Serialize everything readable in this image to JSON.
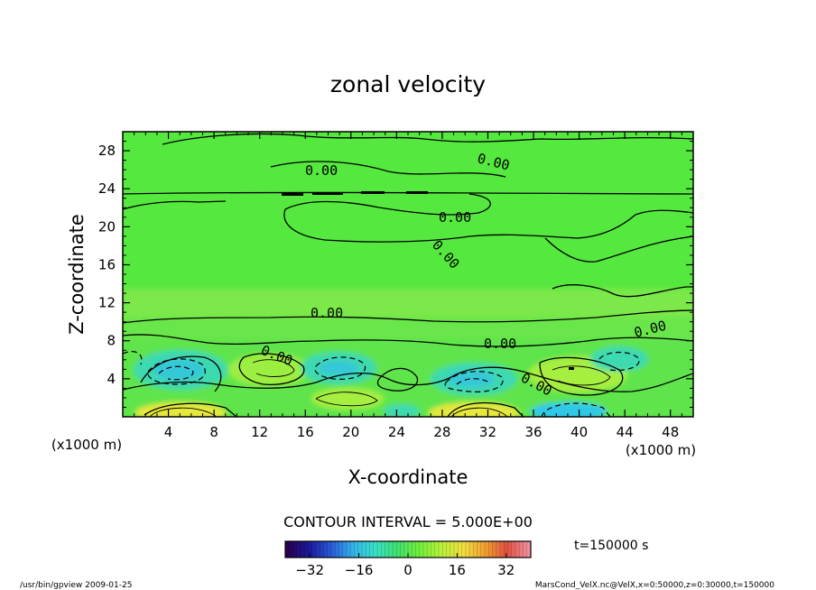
{
  "chart_data": {
    "type": "heatmap",
    "title": "zonal velocity",
    "xlabel": "X-coordinate",
    "ylabel": "Z-coordinate",
    "x_unit_label": "(x1000 m)",
    "y_unit_label": "(x1000 m)",
    "xlim": [
      0,
      50
    ],
    "ylim": [
      0,
      30
    ],
    "x_ticks": [
      4,
      8,
      12,
      16,
      20,
      24,
      28,
      32,
      36,
      40,
      44,
      48
    ],
    "y_ticks": [
      4,
      8,
      12,
      16,
      20,
      24,
      28
    ],
    "contour_interval_label": "CONTOUR INTERVAL = 5.000E+00",
    "contour_labels": [
      "0.00",
      "0.00",
      "0.00",
      "0.00",
      "0.00",
      "0.00",
      "0.00",
      "0.00",
      "0.00"
    ],
    "colorbar": {
      "min": -40,
      "max": 40,
      "ticks": [
        -32,
        -16,
        0,
        16,
        32
      ],
      "colors": [
        "#2a0050",
        "#1a1a9a",
        "#2a5ad8",
        "#33b4e8",
        "#39e0c8",
        "#40e070",
        "#6ef03a",
        "#b8f03a",
        "#f0e040",
        "#f0a030",
        "#e05040",
        "#f090a0"
      ]
    },
    "field_extrema": [
      {
        "x": 5,
        "z": 1,
        "value": 18,
        "sign": "positive"
      },
      {
        "x": 4.5,
        "z": 5,
        "value": -12,
        "sign": "negative"
      },
      {
        "x": 12.5,
        "z": 5.5,
        "value": 8,
        "sign": "positive"
      },
      {
        "x": 19,
        "z": 5.5,
        "value": -10,
        "sign": "negative"
      },
      {
        "x": 20,
        "z": 1.5,
        "value": 10,
        "sign": "positive"
      },
      {
        "x": 30.5,
        "z": 1,
        "value": 18,
        "sign": "positive"
      },
      {
        "x": 30,
        "z": 4.5,
        "value": -12,
        "sign": "negative"
      },
      {
        "x": 38.5,
        "z": 5,
        "value": 8,
        "sign": "positive"
      },
      {
        "x": 38,
        "z": 0.5,
        "value": -15,
        "sign": "negative"
      },
      {
        "x": 43.5,
        "z": 6,
        "value": -8,
        "sign": "negative"
      }
    ]
  },
  "time_label": "t=150000 s",
  "footer": {
    "left": "/usr/bin/gpview  2009-01-25",
    "right": "MarsCond_VelX.nc@VelX,x=0:50000,z=0:30000,t=150000"
  }
}
